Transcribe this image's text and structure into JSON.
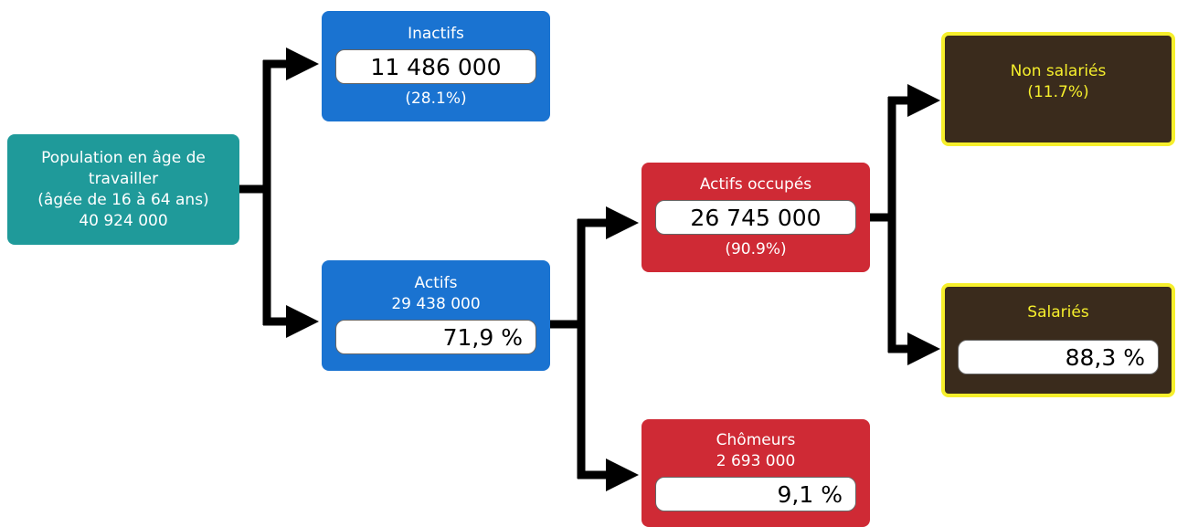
{
  "nodes": [
    {
      "above": [
        "Population en âge de",
        "travailler",
        "(âgée de 16 à 64 ans)",
        "40 924 000"
      ]
    },
    {
      "above": [
        "Inactifs"
      ],
      "box": "11 486 000",
      "below": [
        "(28.1%)"
      ]
    },
    {
      "above": [
        "Actifs",
        "29 438 000"
      ],
      "box": "71,9 %"
    },
    {
      "above": [
        "Actifs occupés"
      ],
      "box": "26 745 000",
      "below": [
        "(90.9%)"
      ]
    },
    {
      "above": [
        "Chômeurs",
        "2 693 000"
      ],
      "box": "9,1 %"
    },
    {
      "above": [
        "Non salariés",
        "(11.7%)"
      ]
    },
    {
      "above": [
        "Salariés"
      ],
      "box": "88,3 %"
    }
  ]
}
